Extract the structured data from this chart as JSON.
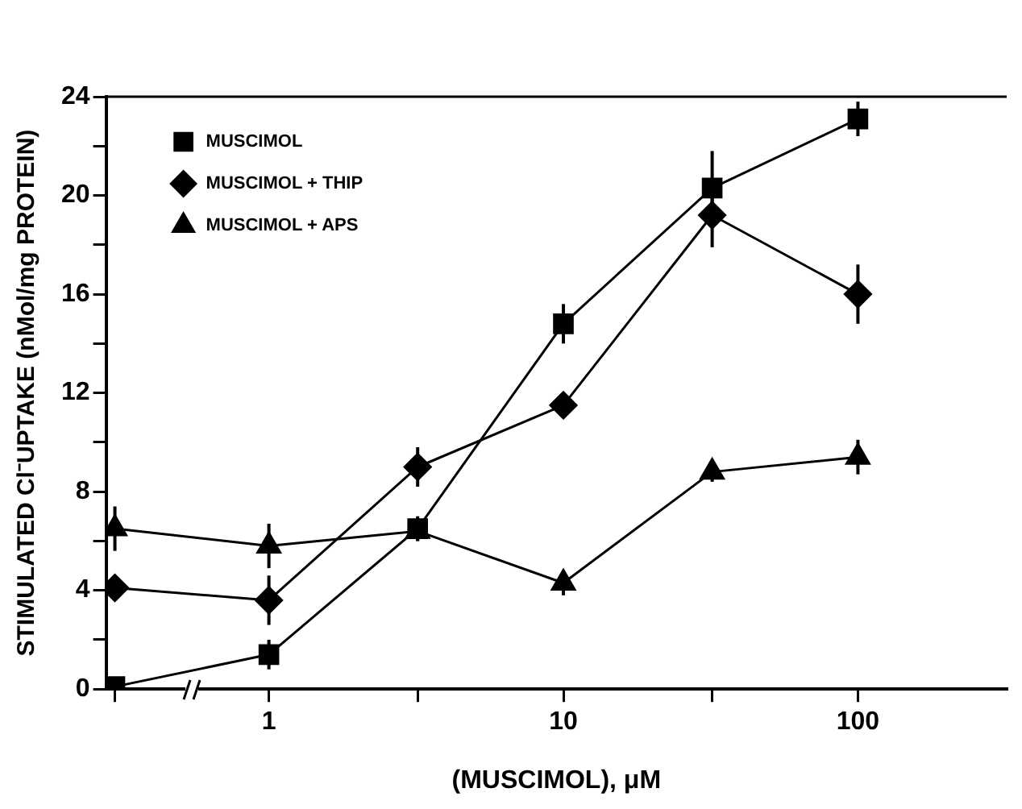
{
  "chart_data": {
    "type": "line",
    "xlabel": "(MUSCIMOL), μM",
    "ylabel": "STIMULATED Cl⁻UPTAKE (nMol/mg PROTEIN)",
    "log": "x",
    "xlim": [
      0.28,
      320
    ],
    "xticks": [
      {
        "value": 0.3,
        "label": null
      },
      1,
      {
        "value": 3.2,
        "label": null
      },
      10,
      {
        "value": 32,
        "label": null
      },
      100
    ],
    "ylim": [
      0,
      24
    ],
    "yticks": [
      0,
      {
        "value": 2,
        "label": null
      },
      4,
      {
        "value": 6,
        "label": null
      },
      8,
      {
        "value": 10,
        "label": null
      },
      12,
      {
        "value": 14,
        "label": null
      },
      16,
      {
        "value": 18,
        "label": null
      },
      20,
      {
        "value": 22,
        "label": null
      },
      24
    ],
    "grid": false,
    "legend": "top left",
    "line_style": "solid",
    "x": [
      0.3,
      1,
      3.2,
      10,
      32,
      100
    ],
    "series": [
      {
        "name": "MUSCIMOL",
        "color": "#000000",
        "marker": "square",
        "values": [
          0.1,
          1.4,
          6.5,
          14.8,
          20.3,
          23.1
        ],
        "errors": [
          null,
          0.6,
          0.5,
          0.8,
          1.5,
          0.7
        ]
      },
      {
        "name": "MUSCIMOL + THIP",
        "color": "#000000",
        "marker": "diamond",
        "values": [
          4.1,
          3.6,
          9.0,
          11.5,
          19.2,
          16.0
        ],
        "errors": [
          0.3,
          1.0,
          0.8,
          0.4,
          1.3,
          1.2
        ]
      },
      {
        "name": "MUSCIMOL + APS",
        "color": "#000000",
        "marker": "triangle",
        "values": [
          6.5,
          5.8,
          6.4,
          4.3,
          8.8,
          9.4
        ],
        "errors": [
          0.9,
          0.9,
          0.4,
          0.5,
          0.4,
          0.7
        ]
      }
    ]
  }
}
